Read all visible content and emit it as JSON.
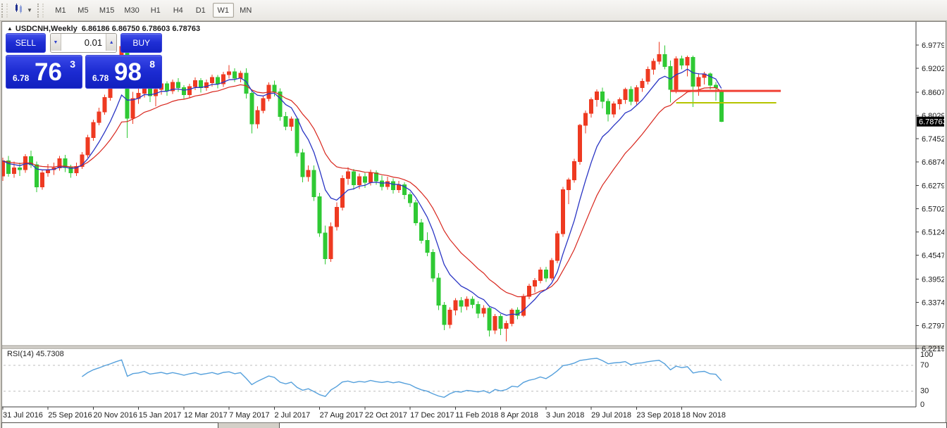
{
  "toolbar": {
    "tool_icon": "chart-cursor",
    "dropdown_glyph": "▼",
    "timeframes": [
      "M1",
      "M5",
      "M15",
      "M30",
      "H1",
      "H4",
      "D1",
      "W1",
      "MN"
    ],
    "active_timeframe": "W1"
  },
  "chart": {
    "title_marker": "▲",
    "symbol_period": "USDCNH,Weekly",
    "ohlc_text": "6.86186 6.86750 6.78603 6.78763"
  },
  "order_panel": {
    "sell_label": "SELL",
    "buy_label": "BUY",
    "volume": "0.01",
    "volume_down_glyph": "▼",
    "volume_up_glyph": "▲",
    "sell_price_small": "6.78",
    "sell_price_big": "76",
    "sell_price_sup": "3",
    "buy_price_small": "6.78",
    "buy_price_big": "98",
    "buy_price_sup": "8"
  },
  "colors": {
    "candle_up": "#ee3a21",
    "candle_down": "#2fc934",
    "ma_fast": "#2a35c4",
    "ma_slow": "#d8261d",
    "hline_red": "#f04135",
    "hline_yellow": "#b5c400",
    "rsi_line": "#55a0dc",
    "grid_dash": "#bcbcbc",
    "axis_text": "#1a1a1a",
    "price_tag_bg": "#000000",
    "price_tag_text": "#ffffff"
  },
  "chart_data": {
    "type": "candlestick",
    "symbol": "USDCNH",
    "timeframe": "Weekly",
    "start_date": "31 Jul 2016",
    "interval": "1 week",
    "current_price": "6.78763",
    "price_ticks": [
      "6.97795",
      "6.92020",
      "6.86070",
      "6.80295",
      "6.74520",
      "6.68745",
      "6.62795",
      "6.57020",
      "6.51245",
      "6.45470",
      "6.39520",
      "6.33745",
      "6.27970",
      "6.22195"
    ],
    "time_ticks": [
      "31 Jul 2016",
      "25 Sep 2016",
      "20 Nov 2016",
      "15 Jan 2017",
      "12 Mar 2017",
      "7 May 2017",
      "2 Jul 2017",
      "27 Aug 2017",
      "22 Oct 2017",
      "17 Dec 2017",
      "11 Feb 2018",
      "8 Apr 2018",
      "3 Jun 2018",
      "29 Jul 2018",
      "23 Sep 2018",
      "18 Nov 2018"
    ],
    "weeks_per_time_tick": 8,
    "candles": [
      [
        6.652,
        6.698,
        6.64,
        6.69
      ],
      [
        6.69,
        6.702,
        6.65,
        6.658
      ],
      [
        6.658,
        6.688,
        6.648,
        6.672
      ],
      [
        6.672,
        6.685,
        6.652,
        6.668
      ],
      [
        6.668,
        6.706,
        6.66,
        6.7
      ],
      [
        6.7,
        6.715,
        6.672,
        6.68
      ],
      [
        6.68,
        6.688,
        6.612,
        6.625
      ],
      [
        6.625,
        6.668,
        6.618,
        6.66
      ],
      [
        6.66,
        6.682,
        6.65,
        6.668
      ],
      [
        6.668,
        6.685,
        6.655,
        6.672
      ],
      [
        6.672,
        6.702,
        6.665,
        6.695
      ],
      [
        6.695,
        6.705,
        6.662,
        6.673
      ],
      [
        6.673,
        6.68,
        6.648,
        6.66
      ],
      [
        6.66,
        6.685,
        6.652,
        6.676
      ],
      [
        6.676,
        6.712,
        6.67,
        6.705
      ],
      [
        6.705,
        6.755,
        6.698,
        6.748
      ],
      [
        6.748,
        6.792,
        6.74,
        6.785
      ],
      [
        6.785,
        6.822,
        6.778,
        6.812
      ],
      [
        6.812,
        6.855,
        6.805,
        6.848
      ],
      [
        6.848,
        6.89,
        6.84,
        6.882
      ],
      [
        6.882,
        6.935,
        6.875,
        6.928
      ],
      [
        6.928,
        6.99,
        6.92,
        6.975
      ],
      [
        6.975,
        6.988,
        6.747,
        6.796
      ],
      [
        6.796,
        6.862,
        6.782,
        6.845
      ],
      [
        6.845,
        6.88,
        6.832,
        6.858
      ],
      [
        6.858,
        6.895,
        6.848,
        6.888
      ],
      [
        6.888,
        6.892,
        6.836,
        6.852
      ],
      [
        6.852,
        6.876,
        6.826,
        6.868
      ],
      [
        6.868,
        6.89,
        6.855,
        6.882
      ],
      [
        6.882,
        6.888,
        6.852,
        6.864
      ],
      [
        6.864,
        6.892,
        6.856,
        6.885
      ],
      [
        6.885,
        6.896,
        6.862,
        6.872
      ],
      [
        6.872,
        6.878,
        6.842,
        6.855
      ],
      [
        6.855,
        6.882,
        6.848,
        6.875
      ],
      [
        6.875,
        6.898,
        6.866,
        6.89
      ],
      [
        6.89,
        6.896,
        6.86,
        6.872
      ],
      [
        6.872,
        6.892,
        6.864,
        6.884
      ],
      [
        6.884,
        6.905,
        6.875,
        6.898
      ],
      [
        6.898,
        6.904,
        6.87,
        6.882
      ],
      [
        6.882,
        6.912,
        6.874,
        6.905
      ],
      [
        6.905,
        6.928,
        6.895,
        6.912
      ],
      [
        6.912,
        6.92,
        6.886,
        6.896
      ],
      [
        6.896,
        6.914,
        6.885,
        6.908
      ],
      [
        6.908,
        6.92,
        6.845,
        6.858
      ],
      [
        6.858,
        6.868,
        6.758,
        6.782
      ],
      [
        6.782,
        6.826,
        6.77,
        6.815
      ],
      [
        6.815,
        6.852,
        6.808,
        6.845
      ],
      [
        6.845,
        6.885,
        6.838,
        6.878
      ],
      [
        6.878,
        6.89,
        6.85,
        6.862
      ],
      [
        6.862,
        6.87,
        6.79,
        6.8
      ],
      [
        6.8,
        6.812,
        6.766,
        6.776
      ],
      [
        6.776,
        6.8,
        6.764,
        6.794
      ],
      [
        6.794,
        6.798,
        6.7,
        6.71
      ],
      [
        6.71,
        6.72,
        6.636,
        6.65
      ],
      [
        6.65,
        6.678,
        6.638,
        6.666
      ],
      [
        6.666,
        6.678,
        6.59,
        6.6
      ],
      [
        6.6,
        6.61,
        6.5,
        6.51
      ],
      [
        6.51,
        6.528,
        6.432,
        6.446
      ],
      [
        6.446,
        6.536,
        6.438,
        6.526
      ],
      [
        6.526,
        6.586,
        6.516,
        6.574
      ],
      [
        6.574,
        6.654,
        6.566,
        6.646
      ],
      [
        6.646,
        6.674,
        6.63,
        6.663
      ],
      [
        6.663,
        6.67,
        6.618,
        6.63
      ],
      [
        6.63,
        6.658,
        6.62,
        6.65
      ],
      [
        6.65,
        6.66,
        6.622,
        6.636
      ],
      [
        6.636,
        6.668,
        6.628,
        6.66
      ],
      [
        6.66,
        6.666,
        6.63,
        6.64
      ],
      [
        6.64,
        6.653,
        6.616,
        6.626
      ],
      [
        6.626,
        6.65,
        6.618,
        6.638
      ],
      [
        6.638,
        6.646,
        6.608,
        6.618
      ],
      [
        6.618,
        6.64,
        6.61,
        6.63
      ],
      [
        6.63,
        6.636,
        6.594,
        6.606
      ],
      [
        6.606,
        6.612,
        6.575,
        6.585
      ],
      [
        6.585,
        6.592,
        6.528,
        6.535
      ],
      [
        6.535,
        6.545,
        6.484,
        6.492
      ],
      [
        6.492,
        6.512,
        6.452,
        6.462
      ],
      [
        6.462,
        6.47,
        6.388,
        6.398
      ],
      [
        6.398,
        6.41,
        6.318,
        6.33
      ],
      [
        6.33,
        6.338,
        6.268,
        6.282
      ],
      [
        6.282,
        6.325,
        6.272,
        6.318
      ],
      [
        6.318,
        6.348,
        6.305,
        6.342
      ],
      [
        6.342,
        6.35,
        6.312,
        6.328
      ],
      [
        6.328,
        6.352,
        6.318,
        6.345
      ],
      [
        6.345,
        6.352,
        6.322,
        6.332
      ],
      [
        6.332,
        6.34,
        6.298,
        6.31
      ],
      [
        6.31,
        6.33,
        6.3,
        6.322
      ],
      [
        6.322,
        6.326,
        6.252,
        6.268
      ],
      [
        6.268,
        6.308,
        6.258,
        6.302
      ],
      [
        6.302,
        6.308,
        6.256,
        6.272
      ],
      [
        6.272,
        6.292,
        6.24,
        6.285
      ],
      [
        6.285,
        6.322,
        6.278,
        6.318
      ],
      [
        6.318,
        6.325,
        6.295,
        6.305
      ],
      [
        6.305,
        6.358,
        6.3,
        6.352
      ],
      [
        6.352,
        6.384,
        6.345,
        6.378
      ],
      [
        6.378,
        6.398,
        6.362,
        6.392
      ],
      [
        6.392,
        6.425,
        6.385,
        6.418
      ],
      [
        6.418,
        6.426,
        6.388,
        6.398
      ],
      [
        6.398,
        6.448,
        6.392,
        6.442
      ],
      [
        6.442,
        6.515,
        6.435,
        6.508
      ],
      [
        6.508,
        6.625,
        6.5,
        6.618
      ],
      [
        6.618,
        6.648,
        6.582,
        6.642
      ],
      [
        6.642,
        6.695,
        6.635,
        6.688
      ],
      [
        6.688,
        6.782,
        6.68,
        6.778
      ],
      [
        6.778,
        6.815,
        6.758,
        6.808
      ],
      [
        6.808,
        6.848,
        6.798,
        6.842
      ],
      [
        6.842,
        6.868,
        6.825,
        6.862
      ],
      [
        6.862,
        6.872,
        6.82,
        6.838
      ],
      [
        6.838,
        6.845,
        6.788,
        6.806
      ],
      [
        6.806,
        6.838,
        6.798,
        6.832
      ],
      [
        6.832,
        6.848,
        6.818,
        6.842
      ],
      [
        6.842,
        6.872,
        6.832,
        6.868
      ],
      [
        6.868,
        6.876,
        6.828,
        6.838
      ],
      [
        6.838,
        6.878,
        6.83,
        6.872
      ],
      [
        6.872,
        6.895,
        6.862,
        6.888
      ],
      [
        6.888,
        6.925,
        6.88,
        6.918
      ],
      [
        6.918,
        6.945,
        6.905,
        6.938
      ],
      [
        6.938,
        6.986,
        6.93,
        6.955
      ],
      [
        6.955,
        6.977,
        6.918,
        6.925
      ],
      [
        6.925,
        6.94,
        6.835,
        6.868
      ],
      [
        6.868,
        6.95,
        6.858,
        6.944
      ],
      [
        6.944,
        6.952,
        6.918,
        6.928
      ],
      [
        6.928,
        6.952,
        6.9,
        6.948
      ],
      [
        6.948,
        6.952,
        6.824,
        6.876
      ],
      [
        6.876,
        6.908,
        6.852,
        6.898
      ],
      [
        6.898,
        6.912,
        6.88,
        6.906
      ],
      [
        6.906,
        6.91,
        6.868,
        6.878
      ],
      [
        6.878,
        6.886,
        6.84,
        6.872
      ],
      [
        6.86186,
        6.8675,
        6.78603,
        6.78763
      ]
    ],
    "overlays": {
      "ma_fast": {
        "type": "ema",
        "period": 8
      },
      "ma_slow": {
        "type": "ema",
        "period": 17
      }
    },
    "hlines": [
      {
        "price": 6.864,
        "color_key": "hline_red",
        "width": 3,
        "start_index": 118,
        "end_index": 137.5
      },
      {
        "price": 6.8345,
        "color_key": "hline_yellow",
        "width": 2,
        "start_index": 119,
        "end_index": 136.7
      }
    ],
    "rsi": {
      "label": "RSI(14)",
      "value": "45.7308",
      "period": 14,
      "levels": [
        "100",
        "70",
        "30",
        "0"
      ],
      "dashed_levels": [
        70,
        30
      ]
    }
  }
}
